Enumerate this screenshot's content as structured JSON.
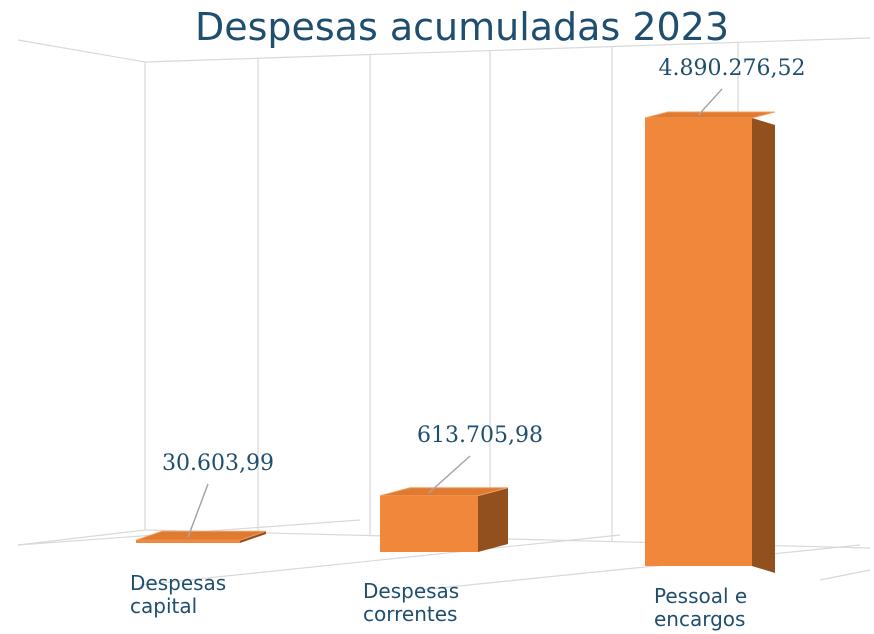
{
  "chart_data": {
    "type": "bar3d",
    "title": "Despesas acumuladas 2023",
    "categories": [
      "Despesas capital",
      "Despesas correntes",
      "Pessoal e encargos"
    ],
    "values": [
      30603.99,
      613705.98,
      4890276.52
    ],
    "value_labels": [
      "30.603,99",
      "613.705,98",
      "4.890.276,52"
    ],
    "color": "#f0873a"
  }
}
